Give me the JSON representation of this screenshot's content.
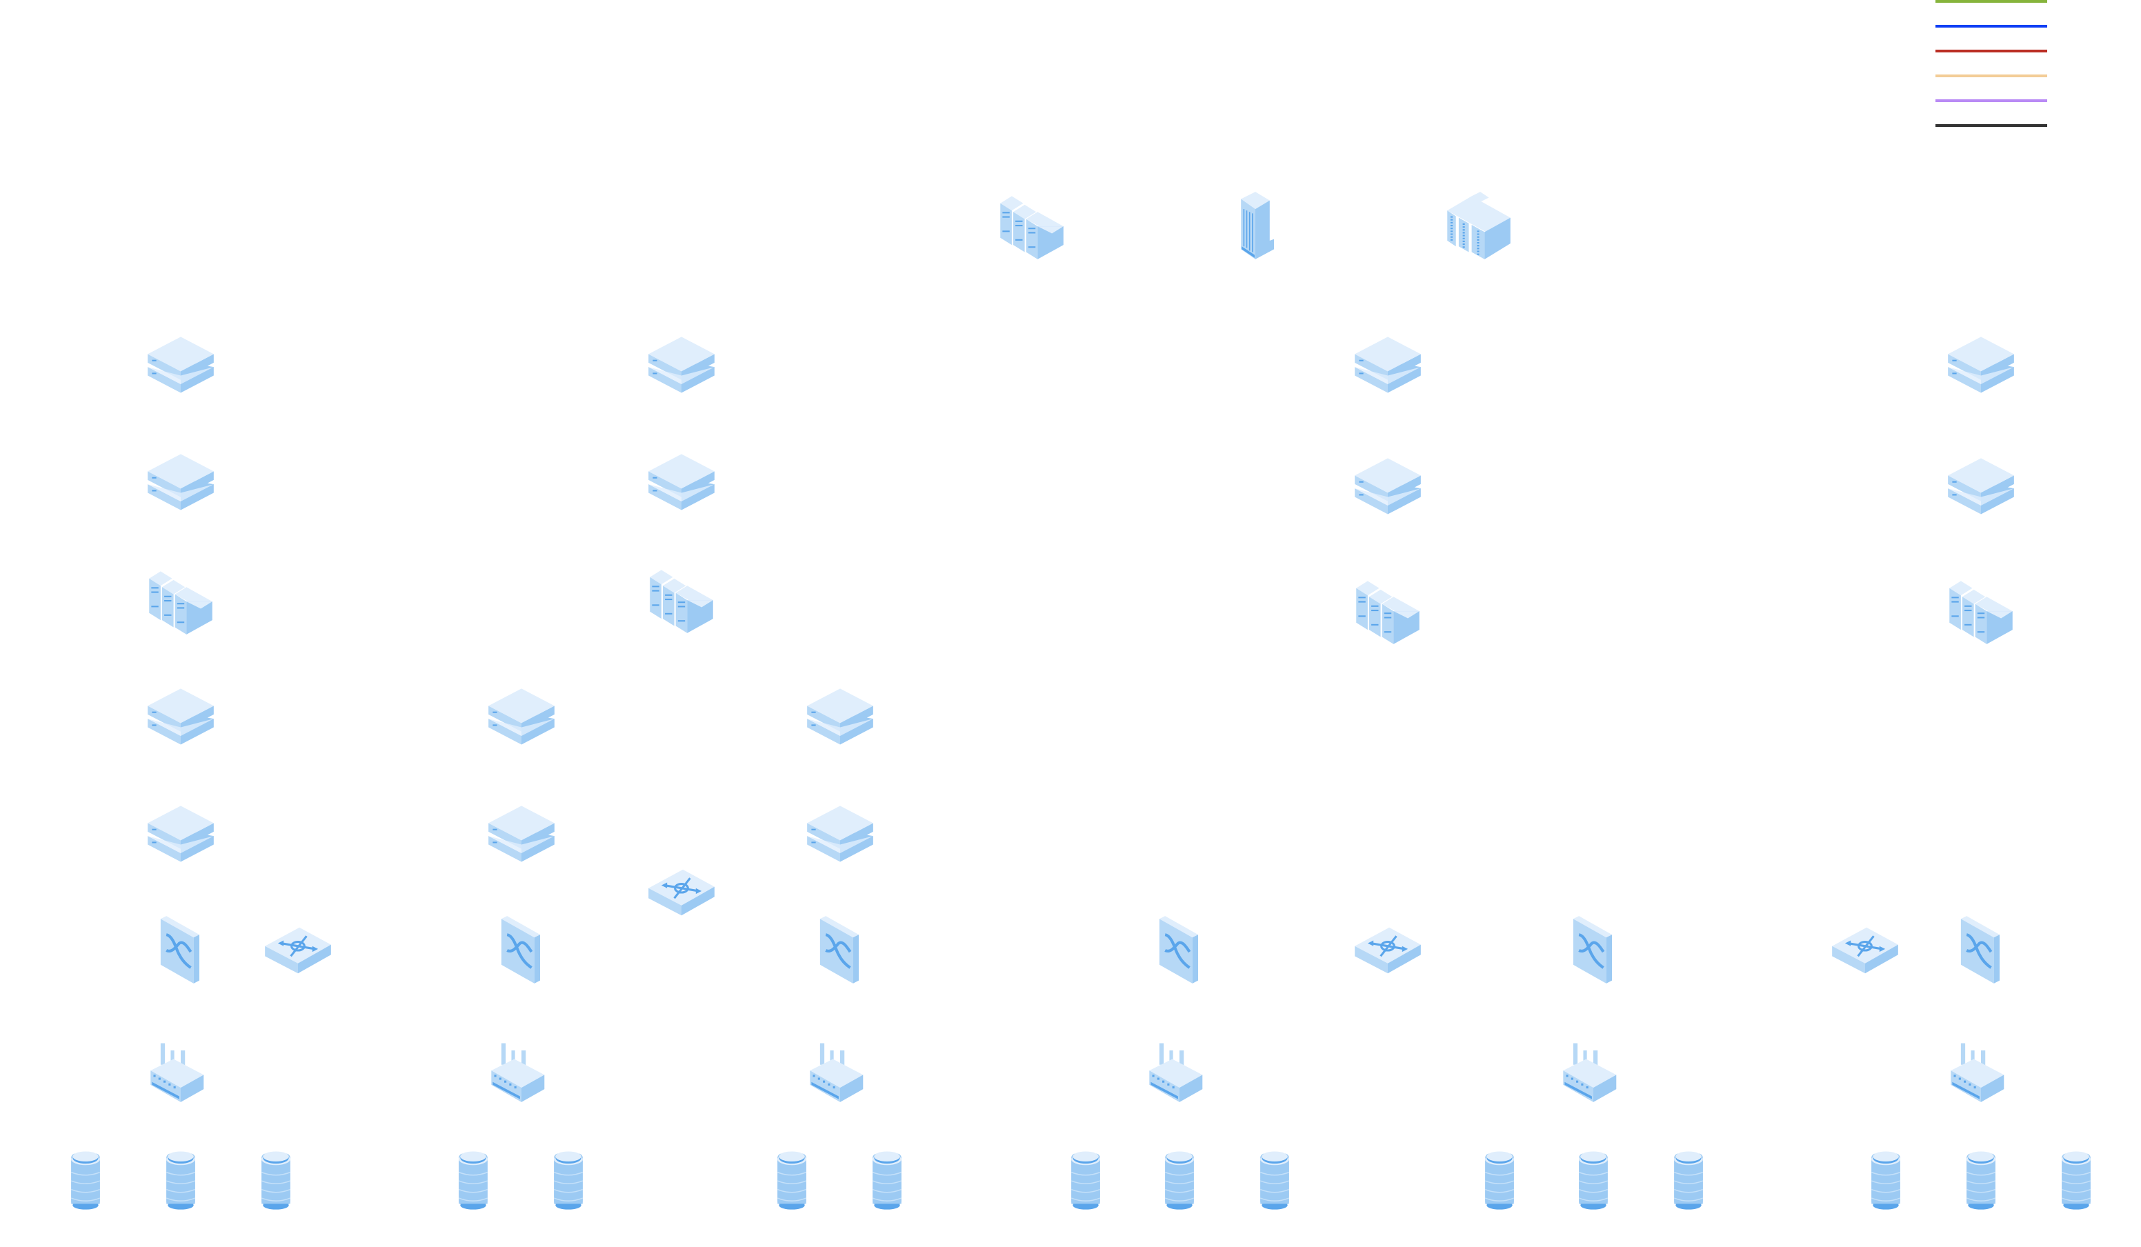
{
  "legend": {
    "line_colors": [
      "#86b43c",
      "#0f3ef5",
      "#bb2e24",
      "#f3cd97",
      "#b98af5",
      "#333333"
    ]
  },
  "icon_colors": {
    "top": "#e0eefc",
    "left": "#b6d8f6",
    "right": "#9ccaf3",
    "accent": "#5aa5eb"
  },
  "icons": [
    "rack-server-icon",
    "office-building-icon",
    "datacenter-icon",
    "server-icon",
    "switch-icon",
    "router-icon",
    "factory-icon",
    "database-icon"
  ]
}
